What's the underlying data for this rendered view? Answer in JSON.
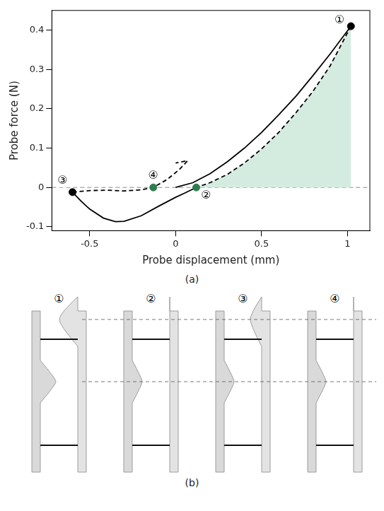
{
  "chart_data": {
    "type": "line",
    "xlabel": "Probe displacement (mm)",
    "ylabel": "Probe force (N)",
    "xlim": [
      -0.72,
      1.13
    ],
    "ylim": [
      -0.11,
      0.45
    ],
    "xticks": [
      -0.5,
      0,
      0.5,
      1
    ],
    "yticks": [
      -0.1,
      0,
      0.1,
      0.2,
      0.3,
      0.4
    ],
    "grid": false,
    "series": [
      {
        "type": "area",
        "color": "#d4ece0",
        "line_style": "none",
        "x": [
          1.02,
          0.9,
          0.8,
          0.7,
          0.6,
          0.5,
          0.4,
          0.3,
          0.2,
          0.12
        ],
        "values": [
          0.41,
          0.31,
          0.245,
          0.19,
          0.14,
          0.098,
          0.062,
          0.033,
          0.012,
          0
        ]
      },
      {
        "type": "line",
        "color": "#000000",
        "line_style": "solid",
        "x": [
          0,
          0.1,
          0.2,
          0.3,
          0.4,
          0.5,
          0.6,
          0.7,
          0.8,
          0.9,
          1.02,
          null,
          0.12,
          0.05,
          0,
          -0.1,
          -0.2,
          -0.3,
          -0.35,
          -0.42,
          -0.5,
          -0.55,
          -0.6
        ],
        "values": [
          0,
          0.012,
          0.035,
          0.065,
          0.1,
          0.14,
          0.185,
          0.232,
          0.285,
          0.34,
          0.41,
          null,
          0,
          -0.015,
          -0.025,
          -0.048,
          -0.072,
          -0.086,
          -0.087,
          -0.078,
          -0.055,
          -0.035,
          -0.012
        ]
      },
      {
        "type": "line",
        "color": "#000000",
        "line_style": "dashed",
        "x": [
          1.02,
          0.9,
          0.8,
          0.7,
          0.6,
          0.5,
          0.4,
          0.3,
          0.2,
          0.12,
          null,
          -0.6,
          -0.5,
          -0.4,
          -0.3,
          -0.2,
          -0.13,
          -0.05,
          0.02,
          0.07,
          0.0
        ],
        "values": [
          0.41,
          0.31,
          0.245,
          0.19,
          0.14,
          0.098,
          0.062,
          0.033,
          0.012,
          0,
          null,
          -0.012,
          -0.008,
          -0.007,
          -0.009,
          -0.006,
          0,
          0.02,
          0.045,
          0.068,
          0.062
        ]
      }
    ],
    "reference_lines": [
      {
        "y": 0,
        "line_style": "dashed",
        "color": "#888888"
      }
    ],
    "annotations": [
      {
        "text": "①",
        "x": 1.02,
        "y": 0.41,
        "color": "#000000",
        "marker": "circle"
      },
      {
        "text": "②",
        "x": 0.12,
        "y": 0,
        "color": "#2e7d4f",
        "marker": "circle"
      },
      {
        "text": "③",
        "x": -0.6,
        "y": -0.012,
        "color": "#000000",
        "marker": "circle"
      },
      {
        "text": "④",
        "x": -0.13,
        "y": 0,
        "color": "#2e7d4f",
        "marker": "circle"
      }
    ]
  },
  "figure": {
    "panel_labels": [
      "(a)",
      "(b)"
    ],
    "frames": [
      "①",
      "②",
      "③",
      "④"
    ]
  }
}
